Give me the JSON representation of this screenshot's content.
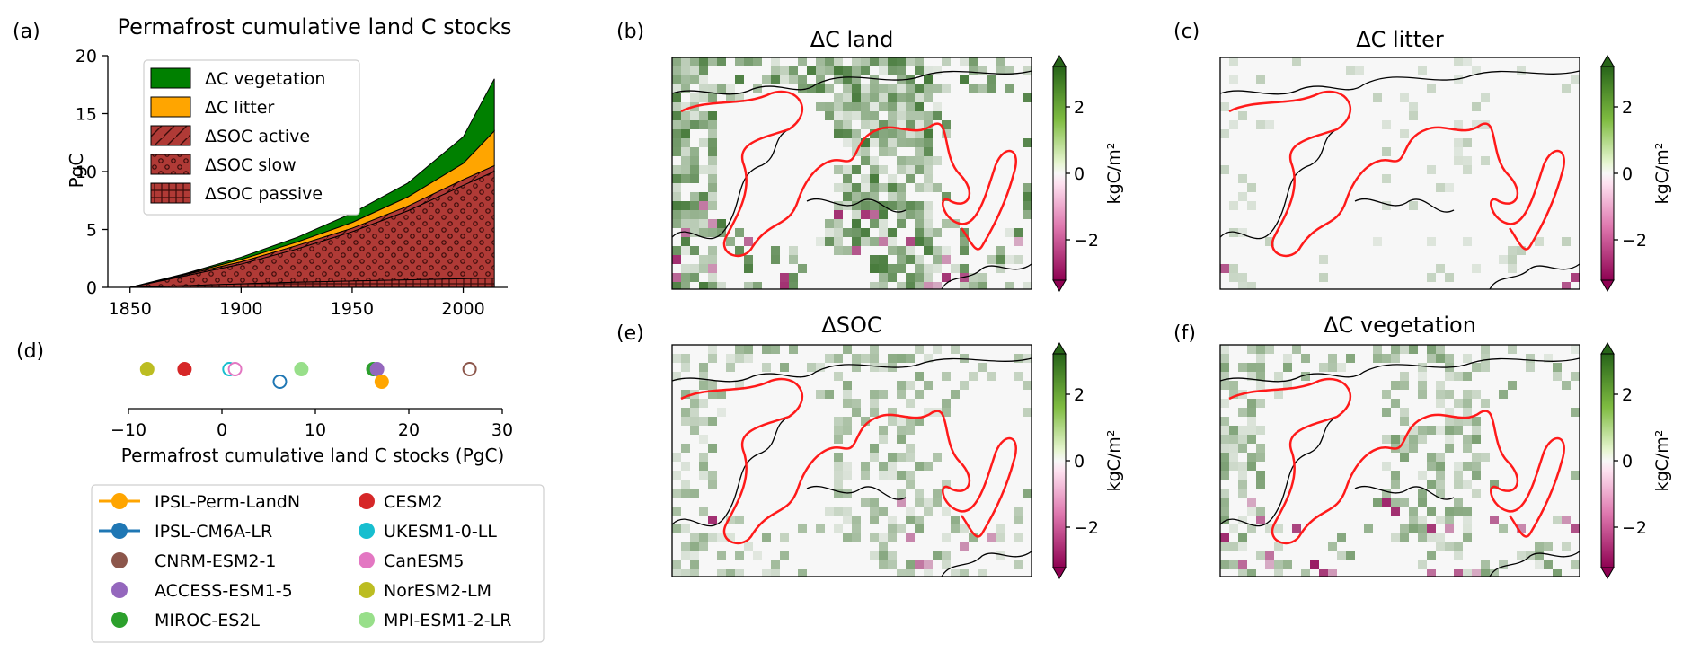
{
  "colors": {
    "vegetation": "#008000",
    "litter": "#FFA500",
    "soc": "#B03A36",
    "contour": "#FF1A1A"
  },
  "panel_a": {
    "label": "(a)",
    "title": "Permafrost cumulative land C stocks",
    "ylabel": "PgC",
    "legend": [
      "ΔC vegetation",
      "ΔC litter",
      "ΔSOC active",
      "ΔSOC slow",
      "ΔSOC passive"
    ]
  },
  "panel_d": {
    "label": "(d)",
    "xlabel": "Permafrost cumulative land C stocks (PgC)"
  },
  "models_legend": [
    {
      "name": "IPSL-Perm-LandN",
      "color": "#FFA500",
      "style": "line"
    },
    {
      "name": "CESM2",
      "color": "#D62728",
      "style": "dot"
    },
    {
      "name": "IPSL-CM6A-LR",
      "color": "#1F77B4",
      "style": "line"
    },
    {
      "name": "UKESM1-0-LL",
      "color": "#17BECF",
      "style": "dot"
    },
    {
      "name": "CNRM-ESM2-1",
      "color": "#8C564B",
      "style": "dot"
    },
    {
      "name": "CanESM5",
      "color": "#E377C2",
      "style": "dot"
    },
    {
      "name": "ACCESS-ESM1-5",
      "color": "#9467BD",
      "style": "dot"
    },
    {
      "name": "NorESM2-LM",
      "color": "#BCBD22",
      "style": "dot"
    },
    {
      "name": "MIROC-ES2L",
      "color": "#2CA02C",
      "style": "dot"
    },
    {
      "name": "MPI-ESM1-2-LR",
      "color": "#98DF8A",
      "style": "dot"
    }
  ],
  "maps": [
    {
      "label": "(b)",
      "title": "ΔC land",
      "cbar_label": "kgC/m²",
      "ticks": [
        "2",
        "0",
        "−2"
      ],
      "greenness": 0.75,
      "magenta": 0.25
    },
    {
      "label": "(c)",
      "title": "ΔC litter",
      "cbar_label": "kgC/m²",
      "ticks": [
        "2",
        "0",
        "−2"
      ],
      "greenness": 0.18,
      "magenta": 0.06
    },
    {
      "label": "(e)",
      "title": "ΔSOC",
      "cbar_label": "kgC/m²",
      "ticks": [
        "2",
        "0",
        "−2"
      ],
      "greenness": 0.45,
      "magenta": 0.15
    },
    {
      "label": "(f)",
      "title": "ΔC vegetation",
      "cbar_label": "kgC/m²",
      "ticks": [
        "2",
        "0",
        "−2"
      ],
      "greenness": 0.5,
      "magenta": 0.25
    }
  ],
  "chart_data": [
    {
      "type": "area",
      "title": "Permafrost cumulative land C stocks",
      "xlabel": "",
      "ylabel": "PgC",
      "xlim": [
        1840,
        2020
      ],
      "ylim": [
        0,
        20
      ],
      "xticks": [
        1850,
        1900,
        1950,
        2000
      ],
      "yticks": [
        0,
        5,
        10,
        15,
        20
      ],
      "x": [
        1850,
        1875,
        1900,
        1925,
        1950,
        1975,
        2000,
        2014
      ],
      "series": [
        {
          "name": "ΔSOC passive",
          "stacked_top_values": [
            0,
            0.15,
            0.3,
            0.45,
            0.55,
            0.65,
            0.75,
            0.8
          ]
        },
        {
          "name": "ΔSOC slow",
          "stacked_top_values": [
            0,
            1.0,
            2.0,
            3.3,
            4.8,
            6.6,
            8.8,
            10.0
          ]
        },
        {
          "name": "ΔSOC active",
          "stacked_top_values": [
            0,
            1.1,
            2.2,
            3.6,
            5.1,
            7.0,
            9.3,
            10.5
          ]
        },
        {
          "name": "ΔC litter",
          "stacked_top_values": [
            0,
            1.15,
            2.4,
            3.9,
            5.6,
            7.8,
            10.7,
            13.5
          ]
        },
        {
          "name": "ΔC vegetation",
          "stacked_top_values": [
            0,
            1.2,
            2.6,
            4.3,
            6.4,
            9.0,
            13.0,
            18.0
          ]
        }
      ],
      "legend_position": "upper left"
    },
    {
      "type": "scatter",
      "xlabel": "Permafrost cumulative land C stocks (PgC)",
      "xlim": [
        -10,
        30
      ],
      "xticks": [
        -10,
        0,
        10,
        20,
        30
      ],
      "points": [
        {
          "model": "NorESM2-LM",
          "x": -8.0,
          "row": 0,
          "filled": true
        },
        {
          "model": "CESM2",
          "x": -4.0,
          "row": 0,
          "filled": true
        },
        {
          "model": "UKESM1-0-LL",
          "x": 0.8,
          "row": 0,
          "filled": false
        },
        {
          "model": "CanESM5",
          "x": 1.4,
          "row": 0,
          "filled": false
        },
        {
          "model": "MPI-ESM1-2-LR",
          "x": 8.5,
          "row": 0,
          "filled": true
        },
        {
          "model": "MIROC-ES2L",
          "x": 16.2,
          "row": 0,
          "filled": true
        },
        {
          "model": "ACCESS-ESM1-5",
          "x": 16.6,
          "row": 0,
          "filled": true
        },
        {
          "model": "CNRM-ESM2-1",
          "x": 26.5,
          "row": 0,
          "filled": false
        },
        {
          "model": "IPSL-CM6A-LR",
          "x": 6.2,
          "row": 1,
          "filled": false
        },
        {
          "model": "IPSL-Perm-LandN",
          "x": 17.1,
          "row": 1,
          "filled": true
        }
      ]
    }
  ]
}
